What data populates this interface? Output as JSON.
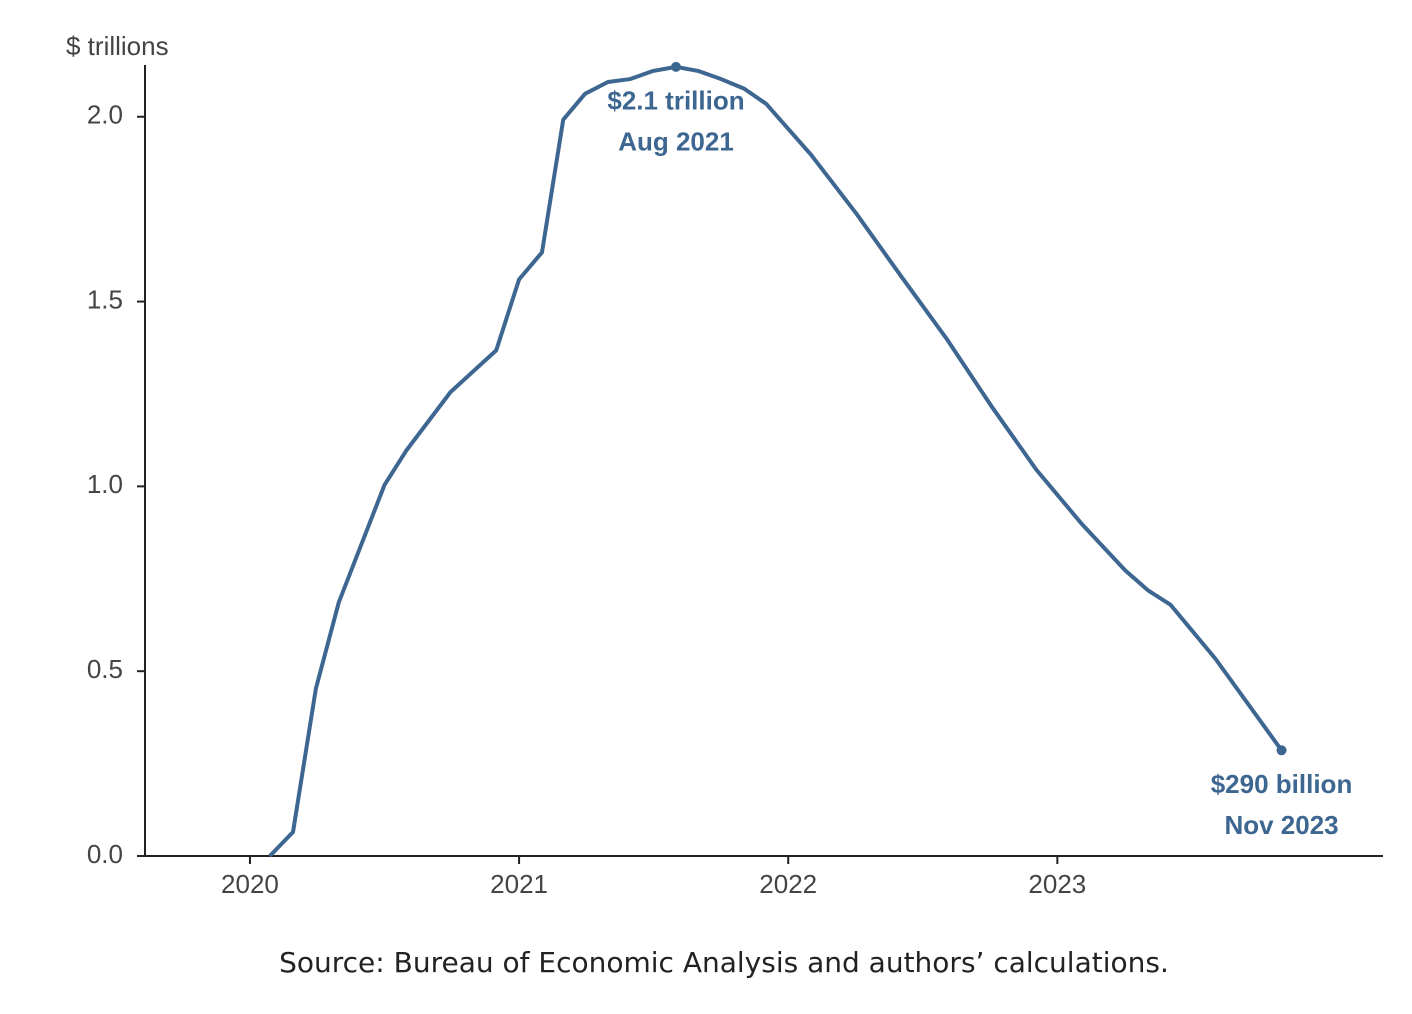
{
  "chart_data": {
    "type": "line",
    "y_label": "$ trillions",
    "source": "Source: Bureau of Economic Analysis and authors’ calculations.",
    "x": [
      2020.074,
      2020.16,
      2020.245,
      2020.33,
      2020.5,
      2020.58,
      2020.745,
      2020.915,
      2021.0,
      2021.085,
      2021.164,
      2021.245,
      2021.33,
      2021.413,
      2021.498,
      2021.583,
      2021.665,
      2021.75,
      2021.836,
      2021.918,
      2022.085,
      2022.253,
      2022.42,
      2022.587,
      2022.755,
      2022.922,
      2023.09,
      2023.253,
      2023.338,
      2023.42,
      2023.587,
      2023.833
    ],
    "series": [
      {
        "color": "#3d6691",
        "values": [
          0,
          0.065,
          0.453,
          0.686,
          1.004,
          1.096,
          1.255,
          1.368,
          1.56,
          1.633,
          1.992,
          2.062,
          2.094,
          2.102,
          2.124,
          2.135,
          2.124,
          2.102,
          2.076,
          2.035,
          1.897,
          1.738,
          1.568,
          1.401,
          1.217,
          1.045,
          0.899,
          0.772,
          0.718,
          0.68,
          0.534,
          0.286
        ]
      }
    ],
    "annotations": [
      [
        "$2.1 trillion",
        "Aug 2021"
      ],
      [
        "$290 billion",
        "Nov 2023"
      ]
    ],
    "xlim": [
      2019.61,
      2024.21
    ],
    "xticks": [
      2020,
      2021,
      2022,
      2023
    ],
    "ylim": [
      0,
      2.14
    ],
    "yticks": [
      {
        "value": 0,
        "label": "0.0"
      },
      0.5,
      {
        "value": 1,
        "label": "1.0"
      },
      1.5,
      {
        "value": 2,
        "label": "2.0"
      }
    ],
    "grid": false
  }
}
